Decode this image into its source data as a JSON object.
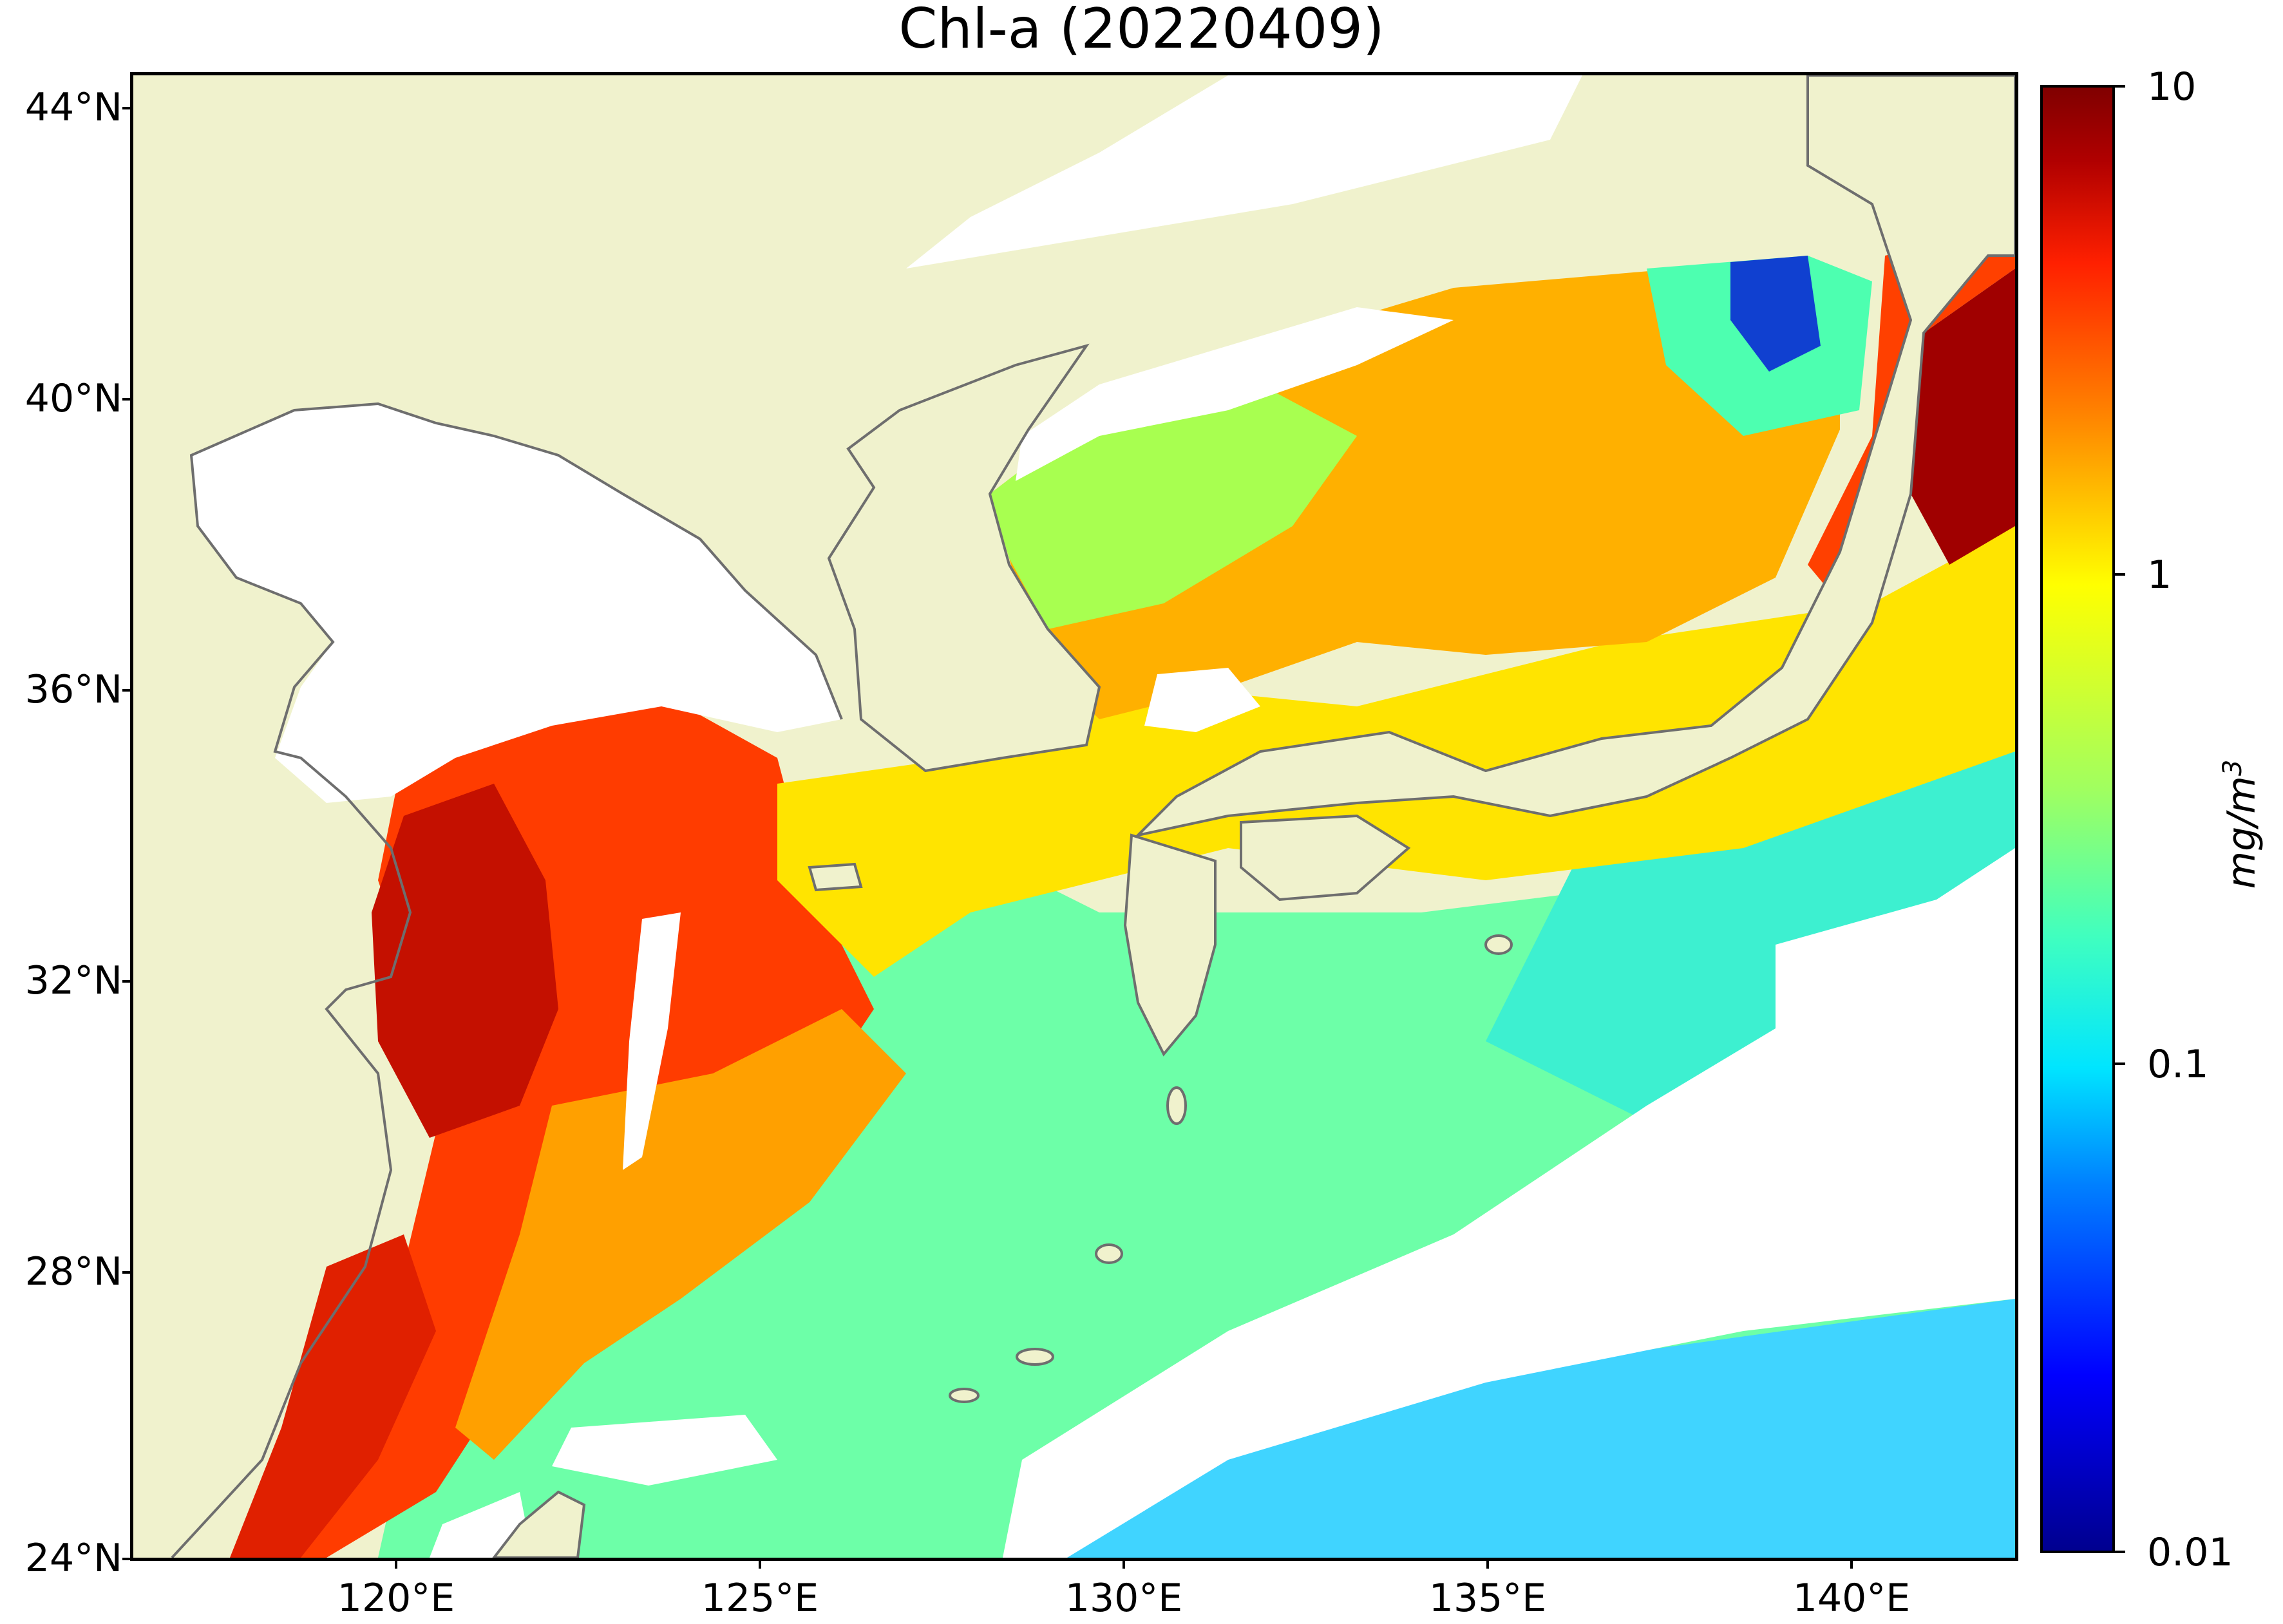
{
  "title": "Chl-a (20220409)",
  "colors": {
    "land": "#f0f2cd",
    "cloud": "#ffffff",
    "coast": "#6e6e6e",
    "colormap": "jet"
  },
  "axes": {
    "y_ticks": [
      "44°N",
      "40°N",
      "36°N",
      "32°N",
      "28°N",
      "24°N"
    ],
    "x_ticks": [
      "120°E",
      "125°E",
      "130°E",
      "135°E",
      "140°E"
    ]
  },
  "colorbar": {
    "ticks": [
      "10",
      "1",
      "0.1",
      "0.01"
    ],
    "unit_base": "mg/m",
    "unit_exp": "3",
    "scale": "log",
    "range": [
      0.01,
      10
    ]
  }
}
